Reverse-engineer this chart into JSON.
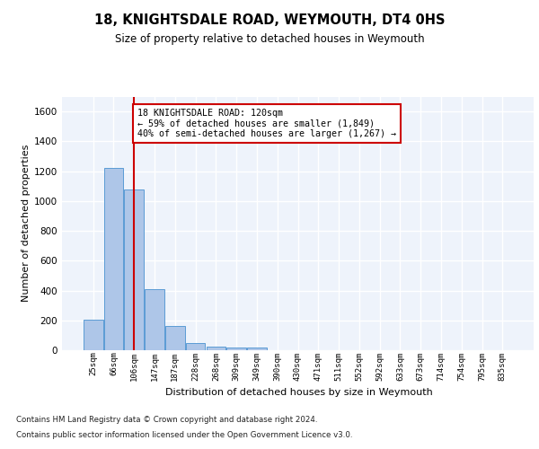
{
  "title": "18, KNIGHTSDALE ROAD, WEYMOUTH, DT4 0HS",
  "subtitle": "Size of property relative to detached houses in Weymouth",
  "xlabel": "Distribution of detached houses by size in Weymouth",
  "ylabel": "Number of detached properties",
  "bar_color": "#aec6e8",
  "bar_edge_color": "#5b9bd5",
  "background_color": "#eef3fb",
  "grid_color": "#ffffff",
  "categories": [
    "25sqm",
    "66sqm",
    "106sqm",
    "147sqm",
    "187sqm",
    "228sqm",
    "268sqm",
    "309sqm",
    "349sqm",
    "390sqm",
    "430sqm",
    "471sqm",
    "511sqm",
    "552sqm",
    "592sqm",
    "633sqm",
    "673sqm",
    "714sqm",
    "754sqm",
    "795sqm",
    "835sqm"
  ],
  "values": [
    205,
    1220,
    1075,
    410,
    160,
    47,
    27,
    20,
    18,
    0,
    0,
    0,
    0,
    0,
    0,
    0,
    0,
    0,
    0,
    0,
    0
  ],
  "ylim": [
    0,
    1700
  ],
  "yticks": [
    0,
    200,
    400,
    600,
    800,
    1000,
    1200,
    1400,
    1600
  ],
  "property_line_x": 2.0,
  "annotation_text": "18 KNIGHTSDALE ROAD: 120sqm\n← 59% of detached houses are smaller (1,849)\n40% of semi-detached houses are larger (1,267) →",
  "annotation_box_color": "#ffffff",
  "annotation_box_edge": "#cc0000",
  "red_line_color": "#cc0000",
  "footnote1": "Contains HM Land Registry data © Crown copyright and database right 2024.",
  "footnote2": "Contains public sector information licensed under the Open Government Licence v3.0."
}
